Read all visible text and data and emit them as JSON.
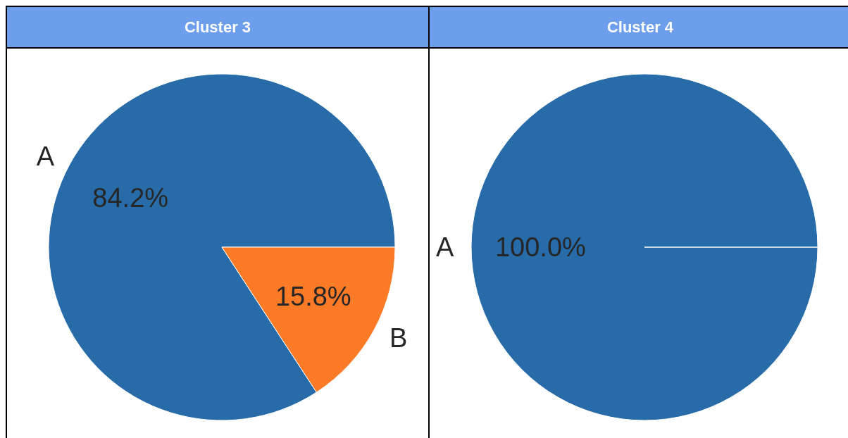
{
  "chart_data": [
    {
      "type": "pie",
      "title": "Cluster 3",
      "categories": [
        "A",
        "B"
      ],
      "values": [
        84.2,
        15.8
      ],
      "colors": [
        "#276ba8",
        "#fd7a26"
      ],
      "value_labels": [
        "84.2%",
        "15.8%"
      ]
    },
    {
      "type": "pie",
      "title": "Cluster 4",
      "categories": [
        "A"
      ],
      "values": [
        100.0
      ],
      "colors": [
        "#276ba8"
      ],
      "value_labels": [
        "100.0%"
      ]
    }
  ]
}
